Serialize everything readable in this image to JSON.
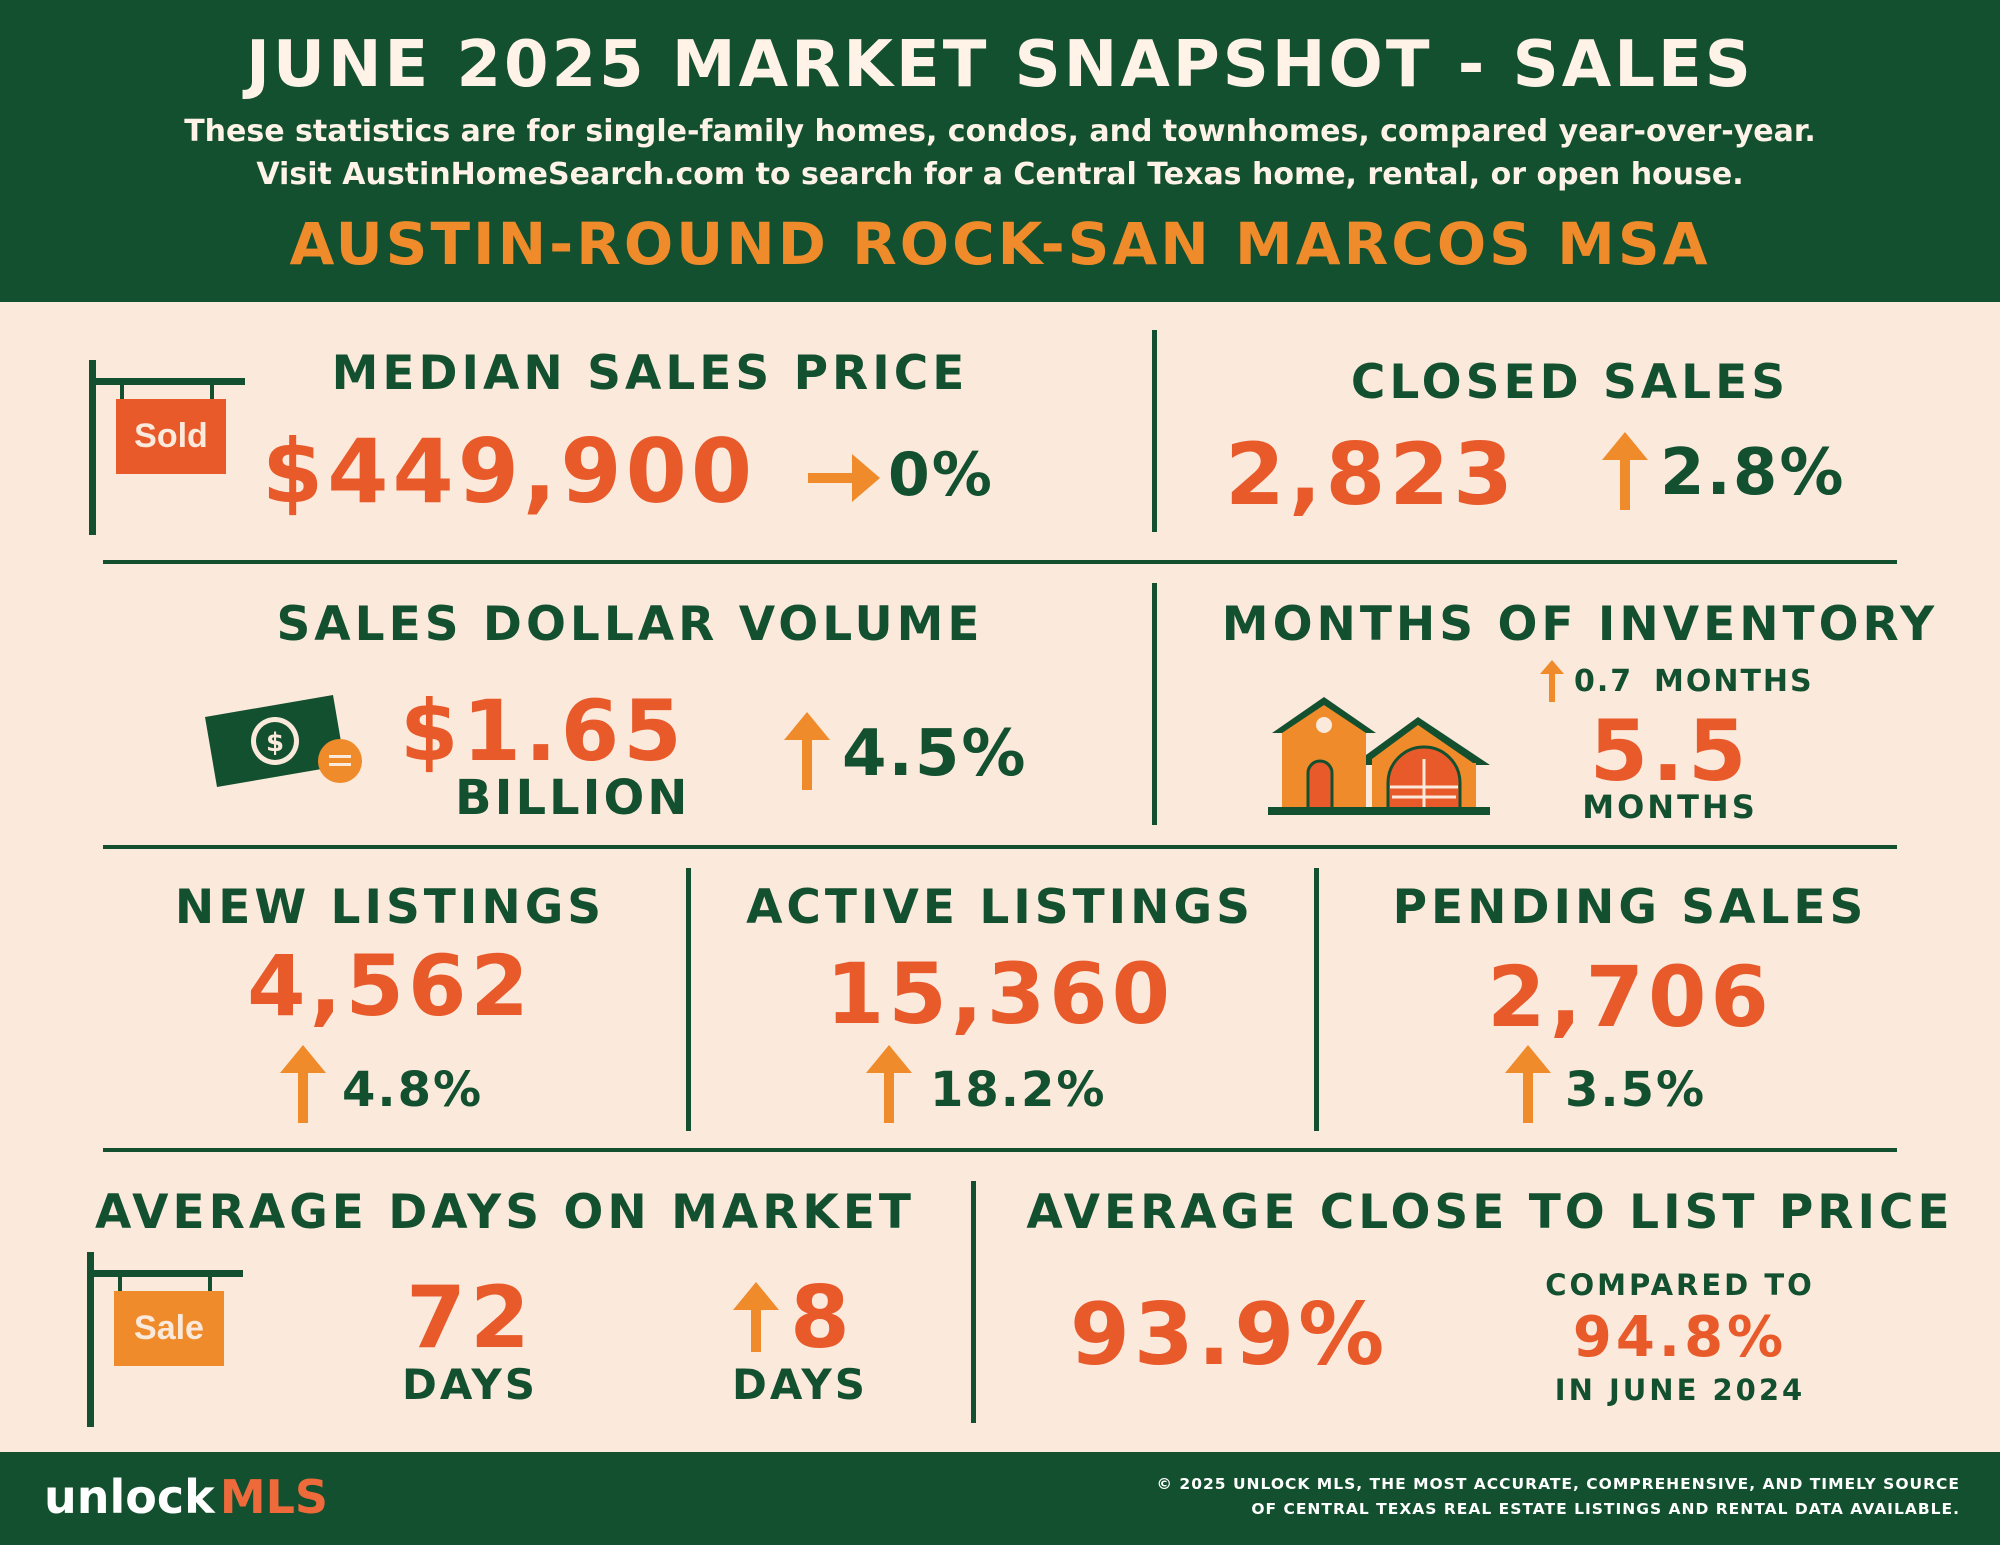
{
  "header": {
    "title": "JUNE 2025 MARKET SNAPSHOT - SALES",
    "subtitle_line1": "These statistics are for single-family homes, condos, and townhomes, compared year-over-year.",
    "subtitle_line2": "Visit AustinHomeSearch.com to search for a Central Texas home, rental, or open house.",
    "region": "AUSTIN-ROUND ROCK-SAN MARCOS MSA"
  },
  "median_sales_price": {
    "label": "MEDIAN SALES PRICE",
    "sign_text": "Sold",
    "value": "$449,900",
    "change": "0%",
    "direction": "flat"
  },
  "closed_sales": {
    "label": "CLOSED SALES",
    "value": "2,823",
    "change": "2.8%",
    "direction": "up"
  },
  "sales_dollar_volume": {
    "label": "SALES DOLLAR VOLUME",
    "value": "$1.65",
    "unit": "BILLION",
    "change": "4.5%",
    "direction": "up"
  },
  "months_of_inventory": {
    "label": "MONTHS OF INVENTORY",
    "change": "0.7",
    "change_unit": "MONTHS",
    "value": "5.5",
    "unit": "MONTHS",
    "direction": "up"
  },
  "new_listings": {
    "label": "NEW LISTINGS",
    "value": "4,562",
    "change": "4.8%",
    "direction": "up"
  },
  "active_listings": {
    "label": "ACTIVE LISTINGS",
    "value": "15,360",
    "change": "18.2%",
    "direction": "up"
  },
  "pending_sales": {
    "label": "PENDING SALES",
    "value": "2,706",
    "change": "3.5%",
    "direction": "up"
  },
  "avg_days_on_market": {
    "label": "AVERAGE DAYS ON MARKET",
    "sign_text": "Sale",
    "value": "72",
    "unit": "DAYS",
    "change": "8",
    "change_unit": "DAYS",
    "direction": "up"
  },
  "avg_close_to_list": {
    "label": "AVERAGE CLOSE TO LIST PRICE",
    "value": "93.9%",
    "compare_label": "COMPARED TO",
    "compare_value": "94.8%",
    "compare_period": "IN JUNE 2024"
  },
  "footer": {
    "logo_part1": "unlock",
    "logo_part2": "MLS",
    "copyright_line1": "© 2025 UNLOCK MLS, THE MOST ACCURATE, COMPREHENSIVE, AND TIMELY SOURCE",
    "copyright_line2": "OF CENTRAL TEXAS REAL ESTATE LISTINGS AND RENTAL DATA AVAILABLE."
  },
  "colors": {
    "green": "#13502f",
    "orange_red": "#e85a2a",
    "orange": "#ef8b2a",
    "background": "#fbe9dc"
  },
  "icons": [
    "sold-sign-icon",
    "money-bill-icon",
    "house-icon",
    "sale-sign-icon",
    "arrow-right-icon",
    "arrow-up-icon"
  ]
}
